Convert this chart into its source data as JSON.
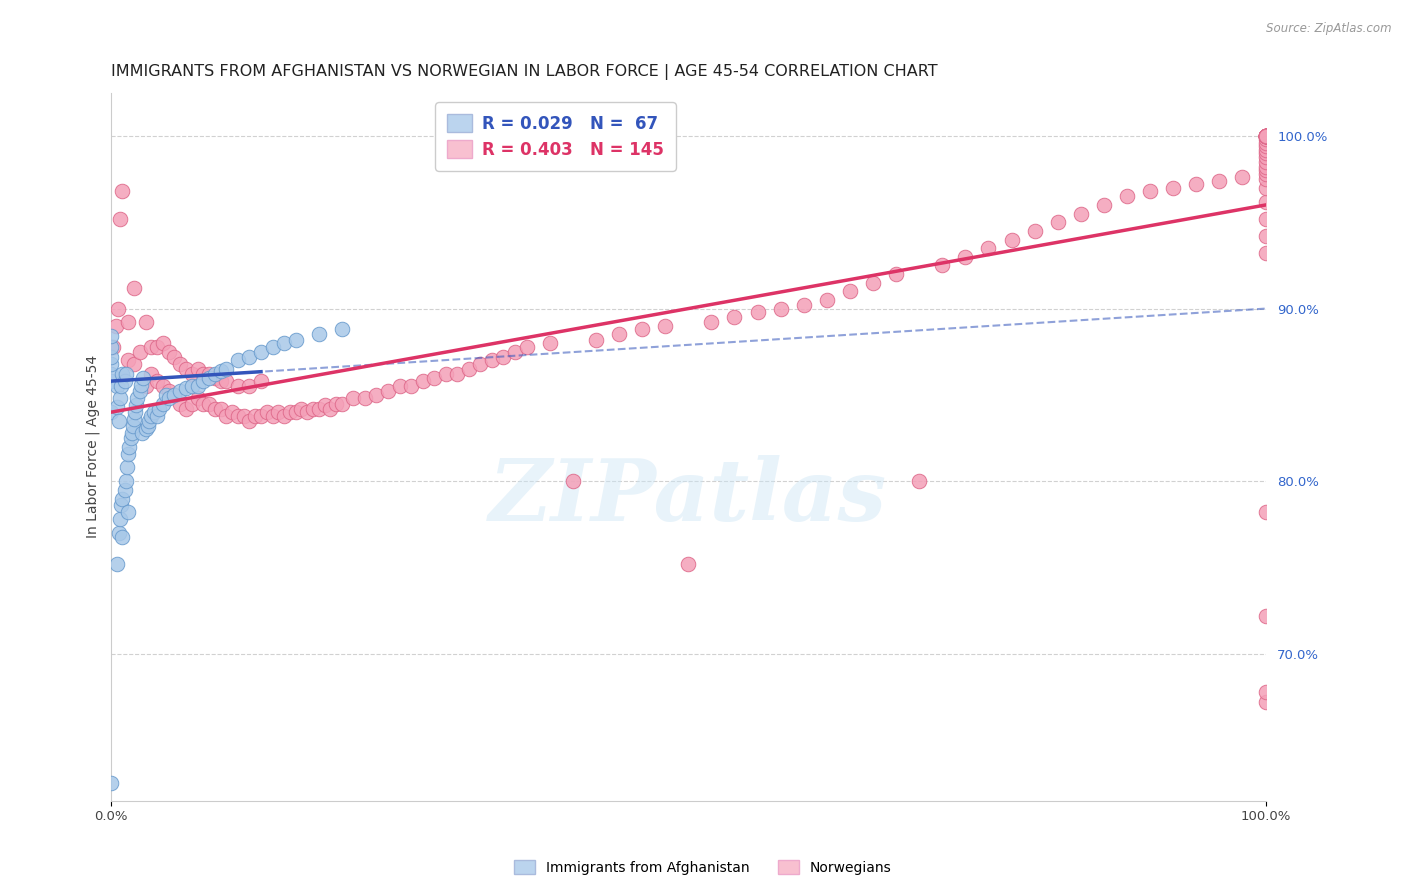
{
  "title": "IMMIGRANTS FROM AFGHANISTAN VS NORWEGIAN IN LABOR FORCE | AGE 45-54 CORRELATION CHART",
  "source": "Source: ZipAtlas.com",
  "ylabel": "In Labor Force | Age 45-54",
  "x_min": 0.0,
  "x_max": 1.0,
  "y_min": 0.615,
  "y_max": 1.025,
  "blue_color": "#a8c8e8",
  "blue_edge_color": "#6699cc",
  "pink_color": "#f4a0b8",
  "pink_edge_color": "#dd6688",
  "blue_trend_color": "#3355bb",
  "pink_trend_color": "#dd3366",
  "grid_color": "#cccccc",
  "background_color": "#ffffff",
  "title_fontsize": 11.5,
  "axis_label_fontsize": 10,
  "tick_fontsize": 9.5,
  "legend_fontsize": 12,
  "blue_scatter_x": [
    0.0,
    0.0,
    0.0,
    0.0,
    0.0,
    0.0,
    0.0,
    0.0,
    0.005,
    0.005,
    0.007,
    0.007,
    0.008,
    0.008,
    0.009,
    0.009,
    0.01,
    0.01,
    0.012,
    0.012,
    0.013,
    0.013,
    0.014,
    0.015,
    0.016,
    0.017,
    0.018,
    0.019,
    0.02,
    0.021,
    0.022,
    0.023,
    0.025,
    0.026,
    0.027,
    0.028,
    0.03,
    0.032,
    0.033,
    0.035,
    0.037,
    0.04,
    0.042,
    0.045,
    0.048,
    0.05,
    0.055,
    0.06,
    0.065,
    0.07,
    0.075,
    0.08,
    0.085,
    0.09,
    0.095,
    0.1,
    0.11,
    0.12,
    0.13,
    0.14,
    0.15,
    0.16,
    0.18,
    0.2,
    0.005,
    0.01,
    0.015
  ],
  "blue_scatter_y": [
    0.625,
    0.84,
    0.858,
    0.862,
    0.868,
    0.872,
    0.878,
    0.884,
    0.843,
    0.855,
    0.77,
    0.835,
    0.778,
    0.848,
    0.786,
    0.855,
    0.79,
    0.862,
    0.795,
    0.858,
    0.8,
    0.862,
    0.808,
    0.816,
    0.82,
    0.825,
    0.828,
    0.832,
    0.836,
    0.84,
    0.844,
    0.848,
    0.852,
    0.856,
    0.828,
    0.86,
    0.83,
    0.832,
    0.835,
    0.838,
    0.84,
    0.838,
    0.842,
    0.845,
    0.85,
    0.848,
    0.85,
    0.852,
    0.854,
    0.855,
    0.855,
    0.858,
    0.86,
    0.862,
    0.864,
    0.865,
    0.87,
    0.872,
    0.875,
    0.878,
    0.88,
    0.882,
    0.885,
    0.888,
    0.752,
    0.768,
    0.782
  ],
  "pink_scatter_x": [
    0.002,
    0.004,
    0.006,
    0.008,
    0.01,
    0.015,
    0.015,
    0.02,
    0.02,
    0.025,
    0.03,
    0.03,
    0.035,
    0.035,
    0.04,
    0.04,
    0.045,
    0.045,
    0.05,
    0.05,
    0.055,
    0.055,
    0.06,
    0.06,
    0.065,
    0.065,
    0.07,
    0.07,
    0.075,
    0.075,
    0.08,
    0.08,
    0.085,
    0.085,
    0.09,
    0.09,
    0.095,
    0.095,
    0.1,
    0.1,
    0.105,
    0.11,
    0.11,
    0.115,
    0.12,
    0.12,
    0.125,
    0.13,
    0.13,
    0.135,
    0.14,
    0.145,
    0.15,
    0.155,
    0.16,
    0.165,
    0.17,
    0.175,
    0.18,
    0.185,
    0.19,
    0.195,
    0.2,
    0.21,
    0.22,
    0.23,
    0.24,
    0.25,
    0.26,
    0.27,
    0.28,
    0.29,
    0.3,
    0.31,
    0.32,
    0.33,
    0.34,
    0.35,
    0.36,
    0.38,
    0.4,
    0.42,
    0.44,
    0.46,
    0.48,
    0.5,
    0.52,
    0.54,
    0.56,
    0.58,
    0.6,
    0.62,
    0.64,
    0.66,
    0.68,
    0.7,
    0.72,
    0.74,
    0.76,
    0.78,
    0.8,
    0.82,
    0.84,
    0.86,
    0.88,
    0.9,
    0.92,
    0.94,
    0.96,
    0.98,
    1.0,
    1.0,
    1.0,
    1.0,
    1.0,
    1.0,
    1.0,
    1.0,
    1.0,
    1.0,
    1.0,
    1.0,
    1.0,
    1.0,
    1.0,
    1.0,
    1.0,
    1.0,
    1.0,
    1.0,
    1.0,
    1.0,
    1.0,
    1.0,
    1.0,
    1.0,
    1.0,
    1.0,
    1.0,
    1.0,
    1.0,
    1.0,
    1.0,
    1.0,
    1.0
  ],
  "pink_scatter_y": [
    0.878,
    0.89,
    0.9,
    0.952,
    0.968,
    0.87,
    0.892,
    0.868,
    0.912,
    0.875,
    0.855,
    0.892,
    0.862,
    0.878,
    0.858,
    0.878,
    0.855,
    0.88,
    0.852,
    0.875,
    0.85,
    0.872,
    0.845,
    0.868,
    0.842,
    0.865,
    0.845,
    0.862,
    0.848,
    0.865,
    0.845,
    0.862,
    0.845,
    0.862,
    0.842,
    0.86,
    0.842,
    0.858,
    0.838,
    0.858,
    0.84,
    0.838,
    0.855,
    0.838,
    0.835,
    0.855,
    0.838,
    0.838,
    0.858,
    0.84,
    0.838,
    0.84,
    0.838,
    0.84,
    0.84,
    0.842,
    0.84,
    0.842,
    0.842,
    0.844,
    0.842,
    0.845,
    0.845,
    0.848,
    0.848,
    0.85,
    0.852,
    0.855,
    0.855,
    0.858,
    0.86,
    0.862,
    0.862,
    0.865,
    0.868,
    0.87,
    0.872,
    0.875,
    0.878,
    0.88,
    0.8,
    0.882,
    0.885,
    0.888,
    0.89,
    0.752,
    0.892,
    0.895,
    0.898,
    0.9,
    0.902,
    0.905,
    0.91,
    0.915,
    0.92,
    0.8,
    0.925,
    0.93,
    0.935,
    0.94,
    0.945,
    0.95,
    0.955,
    0.96,
    0.965,
    0.968,
    0.97,
    0.972,
    0.974,
    0.976,
    0.672,
    0.678,
    0.722,
    0.782,
    0.932,
    0.942,
    0.952,
    0.962,
    0.97,
    0.975,
    0.978,
    0.98,
    0.982,
    0.985,
    0.988,
    0.99,
    0.992,
    0.994,
    0.996,
    0.998,
    1.0,
    1.0,
    1.0,
    1.0,
    1.0,
    1.0,
    1.0,
    1.0,
    1.0,
    1.0,
    1.0,
    1.0,
    1.0,
    1.0,
    1.0
  ],
  "blue_trend_start_x": 0.0,
  "blue_trend_end_solid_x": 0.13,
  "blue_trend_end_x": 1.0,
  "blue_trend_start_y": 0.858,
  "blue_trend_end_y": 0.9,
  "pink_trend_start_x": 0.0,
  "pink_trend_end_x": 1.0,
  "pink_trend_start_y": 0.84,
  "pink_trend_end_y": 0.96
}
